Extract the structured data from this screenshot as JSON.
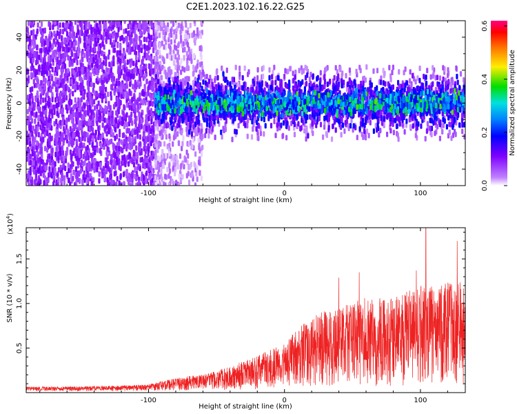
{
  "title": "C2E1.2023.102.16.22.G25",
  "colors": {
    "snr_line": "#ee2222",
    "spectrogram_low": "#7d00ff",
    "spectrogram_high": "#ff0080"
  },
  "chart_data": [
    {
      "type": "heatmap",
      "xlabel": "Height of straight line (km)",
      "ylabel": "Frequency (Hz)",
      "xlim": [
        -190,
        133
      ],
      "ylim": [
        -50,
        50
      ],
      "xticks": [
        -100,
        0,
        100
      ],
      "xtick_labels": [
        "-100",
        "0",
        "100"
      ],
      "yticks": [
        -40,
        -20,
        0,
        20,
        40
      ],
      "ytick_labels": [
        "-40",
        "-20",
        "0",
        "20",
        "40"
      ],
      "colorbar": {
        "label": "Normalized spectral amplitude",
        "range": [
          0,
          0.62
        ],
        "ticks": [
          0.0,
          0.2,
          0.4,
          0.6
        ],
        "tick_labels": [
          "0.0",
          "0.2",
          "0.4",
          "0.6"
        ],
        "colormap": "rainbow"
      },
      "regions": [
        {
          "x_range": [
            -190,
            -95
          ],
          "freq_range": [
            -50,
            50
          ],
          "amplitude": [
            0.05,
            0.12
          ]
        },
        {
          "x_range": [
            -95,
            -60
          ],
          "freq_range": [
            -50,
            50
          ],
          "amplitude": [
            0.01,
            0.06
          ]
        },
        {
          "x_range": [
            -95,
            133
          ],
          "freq_range": [
            -10,
            10
          ],
          "amplitude": [
            0.1,
            0.4
          ]
        }
      ]
    },
    {
      "type": "line",
      "xlabel": "Height of straight line (km)",
      "ylabel": "SNR (10 * v/v)",
      "scale_label": "(x10",
      "scale_exp": "4",
      "scale_close": ")",
      "xlim": [
        -190,
        133
      ],
      "ylim": [
        0,
        18500
      ],
      "xticks": [
        -100,
        0,
        100
      ],
      "xtick_labels": [
        "-100",
        "0",
        "100"
      ],
      "yticks": [
        5000,
        10000,
        15000
      ],
      "ytick_labels": [
        "0.5",
        "1.0",
        "1.5"
      ],
      "envelope": {
        "x": [
          -190,
          -150,
          -120,
          -100,
          -80,
          -60,
          -40,
          -20,
          0,
          20,
          40,
          60,
          80,
          100,
          133
        ],
        "y": [
          500,
          550,
          650,
          800,
          1500,
          1900,
          2800,
          4000,
          5500,
          8500,
          9500,
          10500,
          10500,
          12000,
          12500
        ]
      },
      "peaks": [
        {
          "x": 104,
          "y": 18500
        },
        {
          "x": 127,
          "y": 17000
        },
        {
          "x": 55,
          "y": 13500
        },
        {
          "x": 97,
          "y": 13700
        },
        {
          "x": 40,
          "y": 12900
        }
      ]
    }
  ]
}
